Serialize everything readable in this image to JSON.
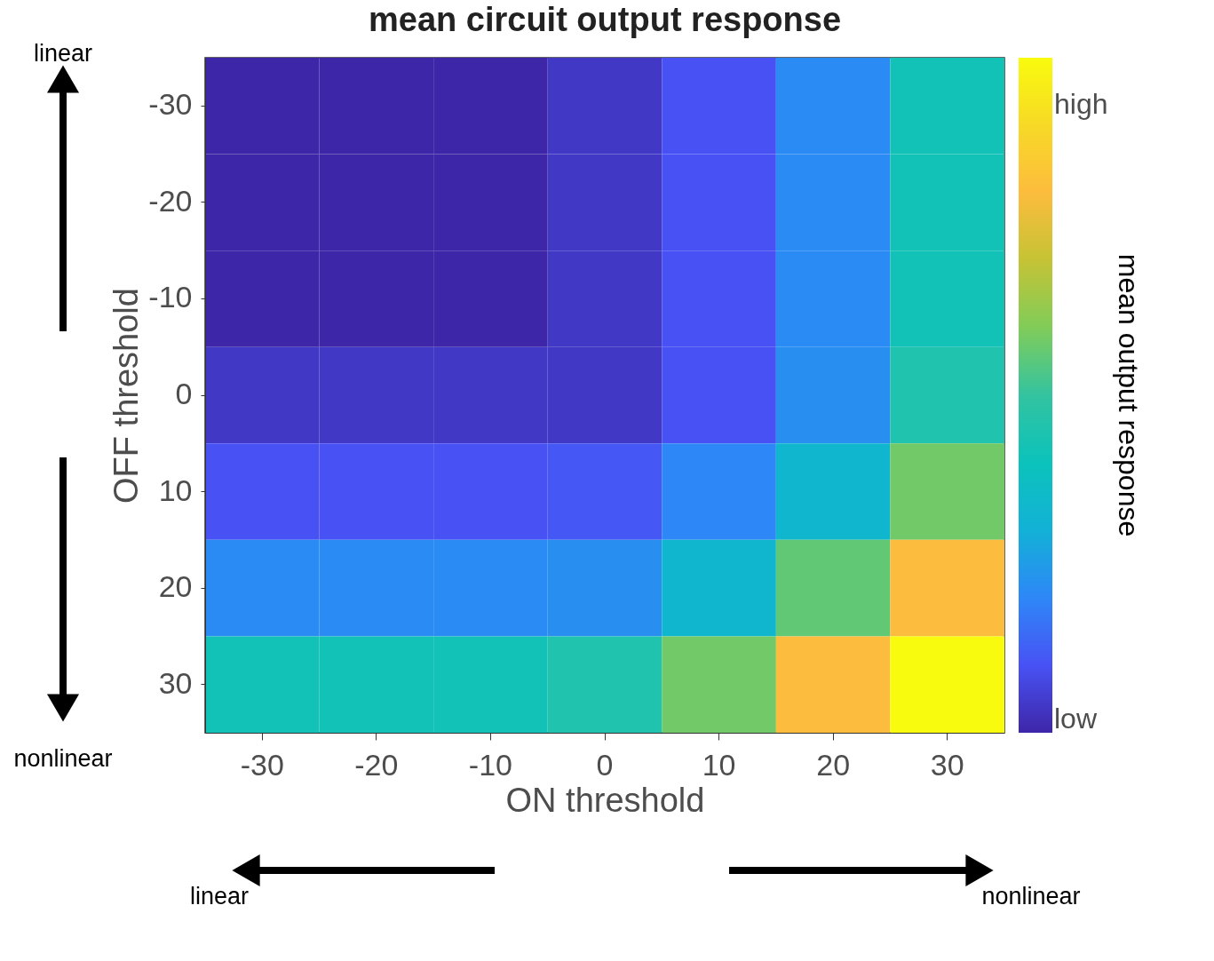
{
  "chart_data": {
    "type": "heatmap",
    "title": "mean circuit output response",
    "xlabel": "ON threshold",
    "ylabel": "OFF threshold",
    "clabel": "mean output response",
    "categories": [
      "-30",
      "-20",
      "-10",
      "0",
      "10",
      "20",
      "30"
    ],
    "y_categories": [
      "-30",
      "-20",
      "-10",
      "0",
      "10",
      "20",
      "30"
    ],
    "cells": [
      [
        0.0,
        0.0,
        0.0,
        0.04,
        0.1,
        0.21,
        0.42
      ],
      [
        0.0,
        0.0,
        0.0,
        0.04,
        0.1,
        0.21,
        0.42
      ],
      [
        0.0,
        0.0,
        0.0,
        0.04,
        0.1,
        0.21,
        0.42
      ],
      [
        0.04,
        0.04,
        0.04,
        0.04,
        0.1,
        0.22,
        0.45
      ],
      [
        0.1,
        0.1,
        0.1,
        0.11,
        0.2,
        0.33,
        0.58
      ],
      [
        0.21,
        0.21,
        0.21,
        0.22,
        0.33,
        0.56,
        0.8
      ],
      [
        0.42,
        0.42,
        0.42,
        0.45,
        0.58,
        0.8,
        1.0
      ]
    ],
    "clim": [
      0,
      1
    ],
    "cticks": [
      {
        "value": 0.02,
        "label": "low"
      },
      {
        "value": 0.93,
        "label": "high"
      }
    ],
    "annotations": [
      "linear",
      "nonlinear",
      "linear",
      "nonlinear"
    ]
  }
}
